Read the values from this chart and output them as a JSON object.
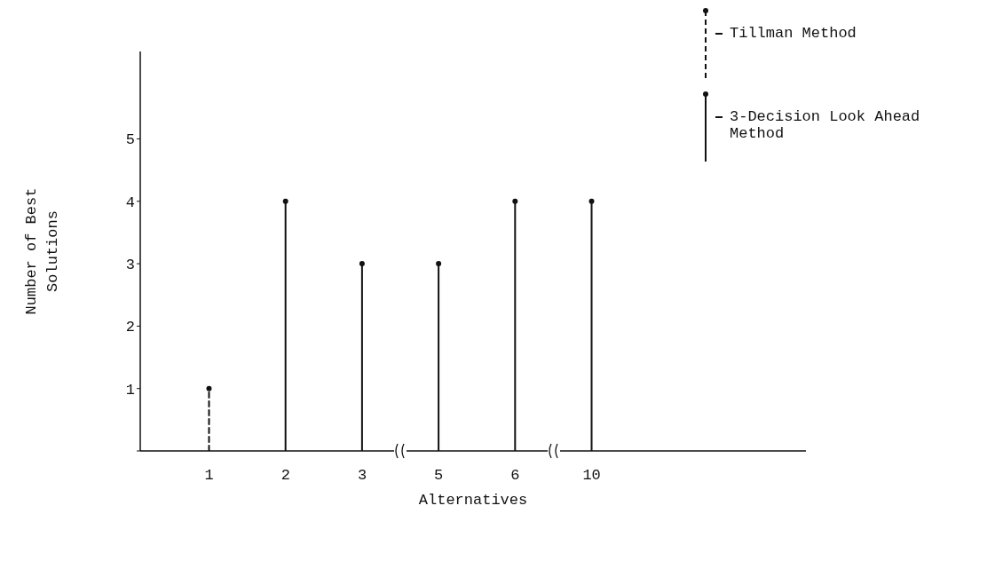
{
  "chart_data": {
    "type": "lollipop",
    "xlabel": "Alternatives",
    "ylabel": "Number of Best Solutions",
    "categories": [
      "1",
      "2",
      "3",
      "5",
      "6",
      "10"
    ],
    "series": [
      {
        "name": "Tillman Method",
        "color": "#111111",
        "line_style": "dashed",
        "values": [
          1,
          null,
          null,
          null,
          null,
          null
        ]
      },
      {
        "name": "3-Decision Look Ahead Method",
        "color": "#111111",
        "line_style": "solid",
        "values": [
          null,
          4,
          3,
          3,
          4,
          4
        ]
      }
    ],
    "ylim": [
      0,
      6.4
    ],
    "yticks": [
      {
        "value": 0,
        "label": null
      },
      1,
      2,
      3,
      4,
      5
    ],
    "grid": false,
    "legend": "top right",
    "marker": "circle"
  }
}
